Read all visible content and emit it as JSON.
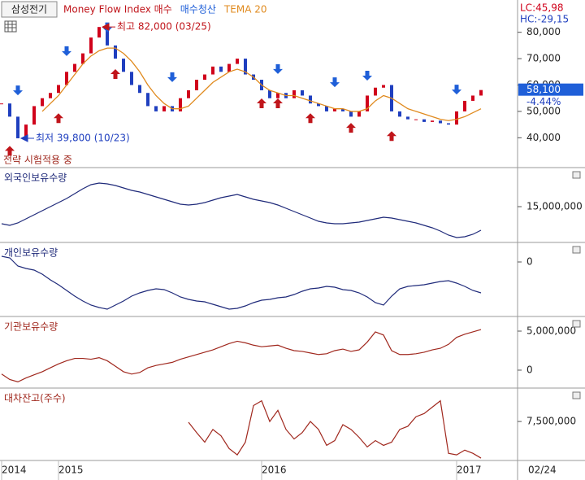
{
  "chart_data": [
    {
      "type": "candle-line",
      "title": "삼성전기",
      "lc": "LC:45,98",
      "hc": "HC:-29,15",
      "last_label": "58,100",
      "change": "-4.44%",
      "date": "02/24",
      "status": "전략 시험적용 중",
      "up_color": "#d0021b",
      "down_color": "#1f3fbf",
      "categories": [
        "2014",
        null,
        null,
        null,
        null,
        null,
        null,
        "2015",
        null,
        null,
        null,
        null,
        null,
        null,
        null,
        null,
        null,
        null,
        null,
        null,
        null,
        null,
        null,
        null,
        null,
        null,
        null,
        null,
        null,
        null,
        null,
        null,
        "2016",
        null,
        null,
        null,
        null,
        null,
        null,
        null,
        null,
        null,
        null,
        null,
        null,
        null,
        null,
        null,
        null,
        null,
        null,
        null,
        null,
        null,
        null,
        null,
        "2017",
        null,
        null,
        null
      ],
      "values": [
        53000,
        48000,
        39800,
        45000,
        52000,
        55000,
        57000,
        60000,
        65000,
        68000,
        72000,
        78000,
        82000,
        75000,
        70000,
        65000,
        60000,
        57000,
        52000,
        50000,
        52000,
        50000,
        55000,
        58000,
        62000,
        64000,
        67000,
        65000,
        68000,
        70000,
        64000,
        62000,
        58000,
        55000,
        57000,
        55000,
        58000,
        56000,
        53000,
        52000,
        50000,
        51000,
        50000,
        48000,
        50000,
        56000,
        59000,
        60000,
        50000,
        48000,
        47000,
        47000,
        46000,
        46500,
        45500,
        45000,
        50000,
        54000,
        56000,
        58100
      ],
      "series": [
        {
          "name": "Money Flow Index 매수",
          "color": "#c0151b",
          "marker": "arrow-up",
          "values": [
            null,
            36900,
            null,
            null,
            null,
            null,
            null,
            49300,
            null,
            null,
            null,
            null,
            null,
            null,
            66000,
            null,
            null,
            null,
            null,
            null,
            null,
            null,
            null,
            null,
            null,
            null,
            null,
            null,
            null,
            null,
            null,
            null,
            54900,
            null,
            54900,
            null,
            null,
            null,
            49300,
            null,
            null,
            null,
            null,
            45600,
            null,
            null,
            null,
            null,
            42500,
            null,
            null,
            null,
            null,
            null,
            null,
            null,
            null,
            null,
            null,
            null
          ]
        },
        {
          "name": "매수청산",
          "color": "#1f5fd8",
          "marker": "arrow-down",
          "values": [
            null,
            null,
            56100,
            null,
            null,
            null,
            null,
            null,
            71000,
            null,
            null,
            null,
            null,
            80000,
            null,
            null,
            null,
            null,
            null,
            null,
            null,
            61100,
            null,
            null,
            null,
            null,
            null,
            null,
            null,
            null,
            null,
            null,
            null,
            null,
            64200,
            null,
            null,
            null,
            null,
            null,
            null,
            59200,
            null,
            null,
            null,
            61700,
            null,
            null,
            null,
            null,
            null,
            null,
            null,
            null,
            null,
            null,
            56400,
            null,
            null,
            null
          ]
        },
        {
          "name": "TEMA 20",
          "color": "#e08a1e",
          "marker": "line",
          "values": [
            null,
            null,
            null,
            null,
            null,
            50000,
            53000,
            56000,
            60000,
            64000,
            68000,
            71000,
            73000,
            74000,
            74000,
            72000,
            69000,
            65000,
            60000,
            56000,
            53000,
            51000,
            51000,
            52000,
            55000,
            58000,
            61000,
            63000,
            65000,
            66000,
            65000,
            63000,
            60000,
            58000,
            57000,
            56000,
            56000,
            55000,
            54000,
            53000,
            52000,
            51000,
            51000,
            50000,
            50000,
            51000,
            54000,
            56000,
            55000,
            53000,
            51000,
            50000,
            49000,
            48000,
            47000,
            46500,
            47000,
            48000,
            49500,
            51000
          ]
        }
      ],
      "annotations": [
        {
          "text": "최고 82,000 (03/25)",
          "color": "#c0151b",
          "at": "max"
        },
        {
          "text": "최저 39,800 (10/23)",
          "color": "#1f3fbf",
          "at": "min"
        }
      ],
      "ylim": [
        29000,
        91000
      ],
      "yticks": [
        {
          "value": 40000,
          "label": "40,000"
        },
        {
          "value": 50000,
          "label": "50,000"
        },
        {
          "value": 60000,
          "label": "60,000"
        },
        {
          "value": 70000,
          "label": "70,000"
        },
        {
          "value": 80000,
          "label": "80,000"
        }
      ]
    },
    {
      "type": "line",
      "title": "외국인보유수량",
      "series": [
        {
          "color": "#1f2a7a",
          "values": [
            12900000,
            12700000,
            13000000,
            13500000,
            14000000,
            14500000,
            15000000,
            15500000,
            16000000,
            16600000,
            17200000,
            17700000,
            17900000,
            17800000,
            17600000,
            17300000,
            17000000,
            16800000,
            16500000,
            16200000,
            15900000,
            15600000,
            15300000,
            15200000,
            15300000,
            15500000,
            15800000,
            16100000,
            16300000,
            16500000,
            16200000,
            15900000,
            15700000,
            15500000,
            15200000,
            14800000,
            14400000,
            14000000,
            13600000,
            13200000,
            13000000,
            12900000,
            12900000,
            13000000,
            13100000,
            13300000,
            13500000,
            13700000,
            13600000,
            13400000,
            13200000,
            13000000,
            12700000,
            12400000,
            12000000,
            11500000,
            11200000,
            11300000,
            11600000,
            12100000
          ]
        }
      ],
      "ylim": [
        10700000,
        19700000
      ],
      "yticks": [
        {
          "value": 15000000,
          "label": "15,000,000"
        }
      ]
    },
    {
      "type": "line",
      "title": "개인보유수량",
      "series": [
        {
          "color": "#1f2a7a",
          "values": [
            700000,
            500000,
            -500000,
            -800000,
            -1000000,
            -1500000,
            -2200000,
            -2800000,
            -3500000,
            -4200000,
            -4800000,
            -5300000,
            -5600000,
            -5800000,
            -5300000,
            -4800000,
            -4200000,
            -3800000,
            -3500000,
            -3300000,
            -3400000,
            -3800000,
            -4300000,
            -4600000,
            -4800000,
            -4900000,
            -5200000,
            -5500000,
            -5800000,
            -5700000,
            -5400000,
            -5000000,
            -4700000,
            -4600000,
            -4400000,
            -4300000,
            -4000000,
            -3600000,
            -3300000,
            -3200000,
            -3000000,
            -3100000,
            -3400000,
            -3500000,
            -3800000,
            -4300000,
            -5000000,
            -5300000,
            -4200000,
            -3300000,
            -3000000,
            -2900000,
            -2800000,
            -2600000,
            -2400000,
            -2300000,
            -2600000,
            -3000000,
            -3500000,
            -3800000
          ]
        }
      ],
      "ylim": [
        -6600000,
        2300000
      ],
      "yticks": [
        0
      ]
    },
    {
      "type": "line",
      "title": "기관보유수량",
      "series": [
        {
          "color": "#a0281e",
          "values": [
            -500000,
            -1200000,
            -1500000,
            -1000000,
            -600000,
            -200000,
            300000,
            800000,
            1200000,
            1500000,
            1500000,
            1400000,
            1600000,
            1200000,
            500000,
            -200000,
            -500000,
            -300000,
            300000,
            600000,
            800000,
            1000000,
            1400000,
            1700000,
            2000000,
            2300000,
            2600000,
            3000000,
            3400000,
            3700000,
            3500000,
            3200000,
            3000000,
            3100000,
            3200000,
            2800000,
            2500000,
            2400000,
            2200000,
            2000000,
            2100000,
            2500000,
            2700000,
            2400000,
            2600000,
            3600000,
            4900000,
            4500000,
            2500000,
            2000000,
            2000000,
            2100000,
            2300000,
            2600000,
            2800000,
            3300000,
            4200000,
            4600000,
            4900000,
            5200000
          ]
        }
      ],
      "ylim": [
        -2190000,
        6770000
      ],
      "yticks": [
        {
          "value": 5000000,
          "label": "5,000,000"
        },
        0
      ]
    },
    {
      "type": "line",
      "title": "대차잔고(주수)",
      "series": [
        {
          "color": "#a0281e",
          "values": [
            null,
            null,
            null,
            null,
            null,
            null,
            null,
            null,
            null,
            null,
            null,
            null,
            null,
            null,
            null,
            null,
            null,
            null,
            null,
            null,
            null,
            null,
            null,
            7450000,
            6800000,
            6200000,
            7000000,
            6600000,
            5800000,
            5400000,
            6200000,
            8500000,
            8800000,
            7500000,
            8200000,
            7000000,
            6400000,
            6800000,
            7500000,
            7000000,
            6000000,
            6300000,
            7300000,
            7000000,
            6500000,
            5900000,
            6300000,
            6000000,
            6200000,
            7000000,
            7200000,
            7800000,
            8000000,
            8400000,
            8800000,
            5500000,
            5400000,
            5700000,
            5500000,
            5200000
          ]
        }
      ],
      "ylim": [
        5100000,
        9550000
      ],
      "yticks": [
        {
          "value": 7500000,
          "label": "7,500,000"
        }
      ]
    }
  ]
}
